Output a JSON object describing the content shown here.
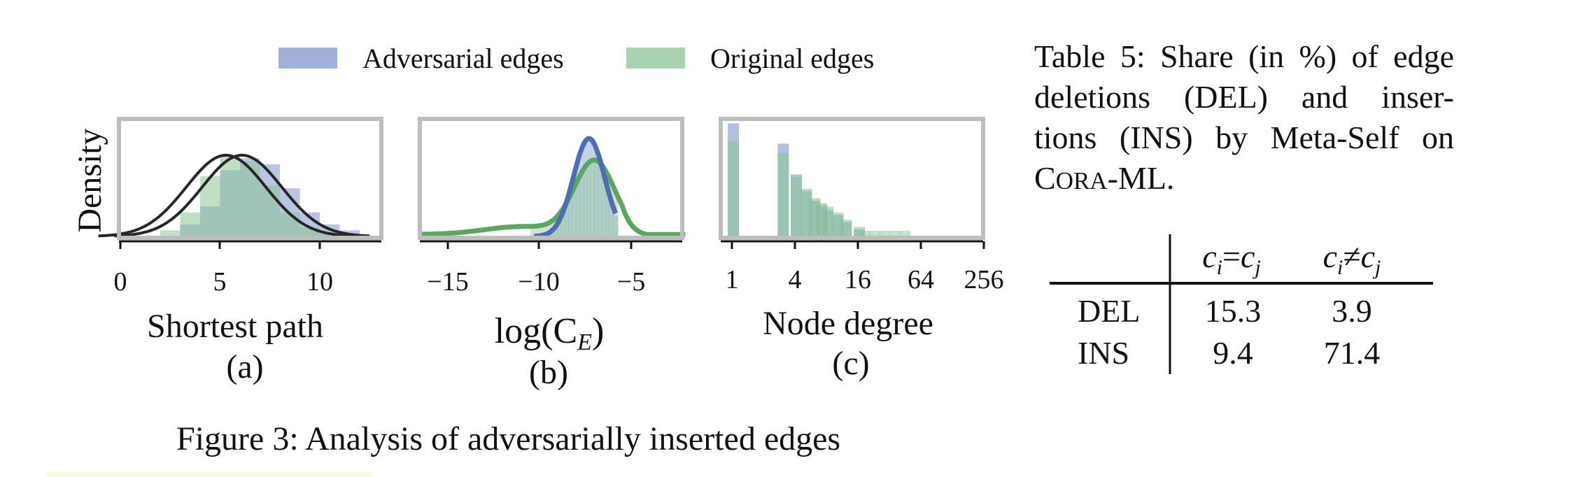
{
  "legend": [
    {
      "label": "Adversarial edges",
      "color": "#7f96cc"
    },
    {
      "label": "Original edges",
      "color": "#8cc495"
    }
  ],
  "colors": {
    "adversarial": "#7f96cc",
    "original": "#8cc495",
    "adversarial_line": "#4e6db5",
    "original_line": "#5ca760",
    "fit_line": "#262626",
    "frame": "#bdbdbd"
  },
  "panels": [
    {
      "id": "a",
      "xlabel": "Shortest path",
      "sublabel": "(a)",
      "ylabel": "Density",
      "ticks": [
        "0",
        "5",
        "10"
      ]
    },
    {
      "id": "b",
      "xlabel": "log(C",
      "xlabel_sub": "E",
      "xlabel_close": ")",
      "sublabel": "(b)",
      "ticks": [
        "−15",
        "−10",
        "−5"
      ]
    },
    {
      "id": "c",
      "xlabel": "Node degree",
      "sublabel": "(c)",
      "ticks": [
        "1",
        "4",
        "16",
        "64",
        "256"
      ]
    }
  ],
  "chart_data": [
    {
      "type": "histogram",
      "xlabel": "Shortest path",
      "ylabel": "Density",
      "xlim": [
        0,
        13
      ],
      "series": [
        {
          "name": "Adversarial edges",
          "bin_edges": [
            3,
            4,
            5,
            6,
            7,
            8,
            9,
            10,
            11,
            12
          ],
          "density": [
            0.04,
            0.1,
            0.22,
            0.26,
            0.24,
            0.16,
            0.08,
            0.04,
            0.02
          ]
        },
        {
          "name": "Original edges",
          "bin_edges": [
            2,
            3,
            4,
            5,
            6,
            7,
            8,
            9,
            10,
            11
          ],
          "density": [
            0.02,
            0.08,
            0.2,
            0.27,
            0.25,
            0.17,
            0.08,
            0.03,
            0.01
          ]
        }
      ]
    },
    {
      "type": "histogram",
      "xlabel": "log(C_E)",
      "xlim": [
        -17,
        -2
      ],
      "series": [
        {
          "name": "Adversarial edges",
          "kde_mode": -7.3
        },
        {
          "name": "Original edges",
          "kde_mode": -7.0
        }
      ]
    },
    {
      "type": "histogram",
      "xlabel": "Node degree",
      "x_scale": "log2",
      "x_ticks": [
        1,
        4,
        16,
        64,
        256
      ],
      "series": [
        {
          "name": "Adversarial edges",
          "degree": [
            1,
            2,
            3,
            4,
            5,
            6,
            7,
            8,
            10,
            12,
            16
          ],
          "density": [
            0.95,
            0.0,
            0.78,
            0.52,
            0.38,
            0.3,
            0.26,
            0.22,
            0.18,
            0.12,
            0.06
          ]
        },
        {
          "name": "Original edges",
          "degree": [
            1,
            2,
            3,
            4,
            5,
            6,
            7,
            8,
            10,
            12,
            16
          ],
          "density": [
            0.8,
            0.0,
            0.7,
            0.5,
            0.4,
            0.32,
            0.28,
            0.25,
            0.2,
            0.14,
            0.08
          ]
        }
      ]
    }
  ],
  "figure_caption": "Figure 3: Analysis of adversarially inserted edges",
  "table": {
    "caption_lines": [
      "Table 5: Share (in %) of edge",
      "deletions (DEL) and inser-",
      "tions (INS) by Meta-Self on"
    ],
    "caption_dataset_c": "C",
    "caption_dataset_rest": "ORA",
    "caption_dataset_tail": "-ML.",
    "col_headers": [
      "c_i=c_j",
      "c_i≠c_j"
    ],
    "rows": [
      {
        "label": "DEL",
        "values": [
          "15.3",
          "3.9"
        ]
      },
      {
        "label": "INS",
        "values": [
          "9.4",
          "71.4"
        ]
      }
    ]
  }
}
